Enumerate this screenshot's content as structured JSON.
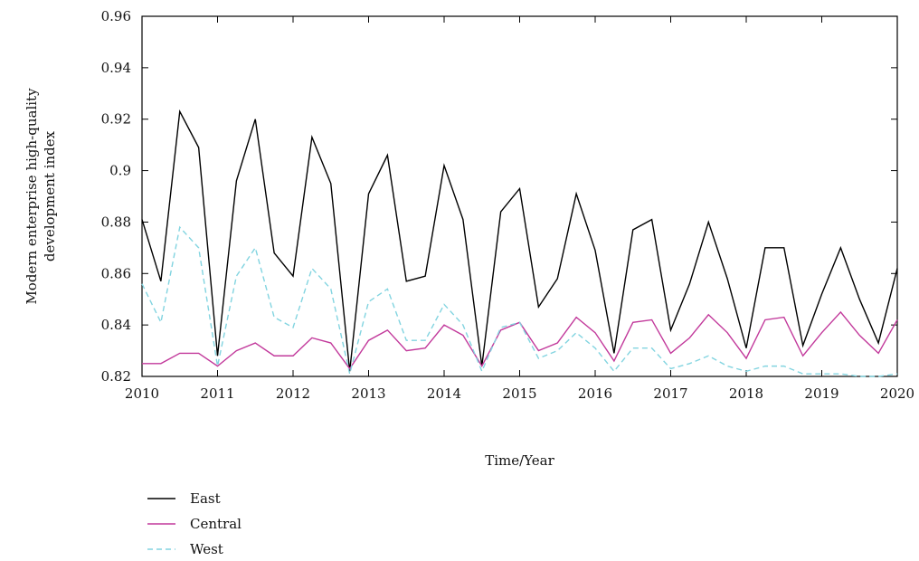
{
  "chart_data": {
    "type": "line",
    "title": "",
    "xlabel": "Time/Year",
    "ylabel_lines": [
      "Modern enterprise high-quality",
      "development index"
    ],
    "xlim": [
      2010,
      2020
    ],
    "ylim": [
      0.82,
      0.96
    ],
    "x_ticks": [
      2010,
      2011,
      2012,
      2013,
      2014,
      2015,
      2016,
      2017,
      2018,
      2019,
      2020
    ],
    "y_ticks": [
      {
        "value": 0.82,
        "label": "0.82"
      },
      {
        "value": 0.84,
        "label": "0.84"
      },
      {
        "value": 0.86,
        "label": "0.86"
      },
      {
        "value": 0.88,
        "label": "0.88"
      },
      {
        "value": 0.9,
        "label": "0.9"
      },
      {
        "value": 0.92,
        "label": "0.92"
      },
      {
        "value": 0.94,
        "label": "0.94"
      },
      {
        "value": 0.96,
        "label": "0.96"
      }
    ],
    "legend_position": "bottom-left",
    "x": [
      2010.0,
      2010.25,
      2010.5,
      2010.75,
      2011.0,
      2011.25,
      2011.5,
      2011.75,
      2012.0,
      2012.25,
      2012.5,
      2012.75,
      2013.0,
      2013.25,
      2013.5,
      2013.75,
      2014.0,
      2014.25,
      2014.5,
      2014.75,
      2015.0,
      2015.25,
      2015.5,
      2015.75,
      2016.0,
      2016.25,
      2016.5,
      2016.75,
      2017.0,
      2017.25,
      2017.5,
      2017.75,
      2018.0,
      2018.25,
      2018.5,
      2018.75,
      2019.0,
      2019.25,
      2019.5,
      2019.75,
      2020.0
    ],
    "series": [
      {
        "name": "East",
        "color": "#000000",
        "dash": "none",
        "values": [
          0.881,
          0.857,
          0.923,
          0.909,
          0.828,
          0.896,
          0.92,
          0.868,
          0.859,
          0.913,
          0.895,
          0.822,
          0.891,
          0.906,
          0.857,
          0.859,
          0.902,
          0.881,
          0.824,
          0.884,
          0.893,
          0.847,
          0.858,
          0.891,
          0.869,
          0.829,
          0.877,
          0.881,
          0.838,
          0.856,
          0.88,
          0.858,
          0.831,
          0.87,
          0.87,
          0.832,
          0.852,
          0.87,
          0.85,
          0.833,
          0.862
        ]
      },
      {
        "name": "Central",
        "color": "#c2399b",
        "dash": "none",
        "values": [
          0.825,
          0.825,
          0.829,
          0.829,
          0.824,
          0.83,
          0.833,
          0.828,
          0.828,
          0.835,
          0.833,
          0.823,
          0.834,
          0.838,
          0.83,
          0.831,
          0.84,
          0.836,
          0.824,
          0.838,
          0.841,
          0.83,
          0.833,
          0.843,
          0.837,
          0.826,
          0.841,
          0.842,
          0.829,
          0.835,
          0.844,
          0.837,
          0.827,
          0.842,
          0.843,
          0.828,
          0.837,
          0.845,
          0.836,
          0.829,
          0.842
        ]
      },
      {
        "name": "West",
        "color": "#82d4e0",
        "dash": "6,4",
        "values": [
          0.856,
          0.841,
          0.878,
          0.87,
          0.824,
          0.859,
          0.87,
          0.843,
          0.839,
          0.862,
          0.854,
          0.821,
          0.849,
          0.854,
          0.834,
          0.834,
          0.848,
          0.84,
          0.822,
          0.839,
          0.841,
          0.827,
          0.83,
          0.837,
          0.831,
          0.822,
          0.831,
          0.831,
          0.823,
          0.825,
          0.828,
          0.824,
          0.822,
          0.824,
          0.824,
          0.821,
          0.821,
          0.821,
          0.82,
          0.82,
          0.821
        ]
      }
    ]
  }
}
